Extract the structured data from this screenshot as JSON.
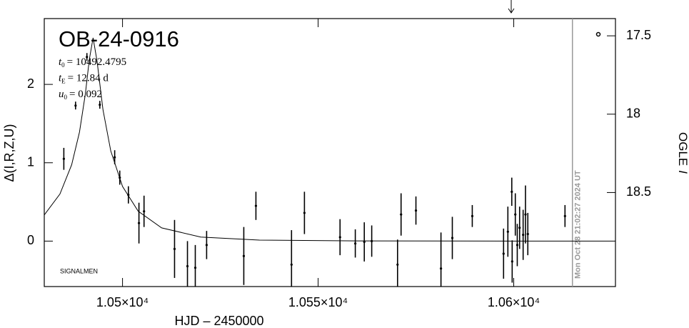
{
  "chart_data": {
    "type": "scatter",
    "title": "OB-24-0916",
    "params": [
      {
        "symbol": "t",
        "subscript": "0",
        "text": "= 10492.4795"
      },
      {
        "symbol": "t",
        "subscript": "E",
        "text": "= 12.84 d"
      },
      {
        "symbol": "u",
        "subscript": "0",
        "text": "= 0.092"
      }
    ],
    "note": "SIGNALMEN",
    "xlabel": "HJD – 2450000",
    "ylabel": "Δ(I,R,Z,U)",
    "y2label": {
      "text": "OGLE",
      "italic": "I"
    },
    "xlim": [
      10480,
      10626
    ],
    "xticks": [
      {
        "value": 10500,
        "label": "1.05×10⁴"
      },
      {
        "value": 10550,
        "label": "1.055×10⁴"
      },
      {
        "value": 10600,
        "label": "1.06×10⁴"
      }
    ],
    "ylim": [
      -0.58,
      2.84
    ],
    "yticks": [
      0,
      1,
      2
    ],
    "y2lim": [
      19.1,
      17.39
    ],
    "y2ticks": [
      17.5,
      18,
      18.5
    ],
    "color": "#000000",
    "x": [
      10485.0,
      10488.0,
      10490.9,
      10494.2,
      10498.0,
      10499.3,
      10501.5,
      10504.2,
      10505.5,
      10513.3,
      10516.6,
      10518.6,
      10521.5,
      10531.0,
      10534.1,
      10543.2,
      10546.5,
      10555.6,
      10559.5,
      10561.8,
      10563.7,
      10570.3,
      10571.2,
      10575.0,
      10581.4,
      10584.3,
      10589.4,
      10597.4,
      10598.5,
      10599.5,
      10599.6,
      10600.4,
      10600.9,
      10601.5,
      10602.4,
      10603.0,
      10603.6,
      10613.1
    ],
    "values": [
      1.05,
      1.73,
      2.35,
      1.74,
      1.07,
      0.81,
      0.59,
      0.23,
      0.38,
      -0.1,
      -0.32,
      -0.34,
      -0.05,
      -0.19,
      0.45,
      -0.3,
      0.36,
      0.05,
      -0.03,
      -0.01,
      0.0,
      -0.3,
      0.34,
      0.39,
      -0.35,
      0.04,
      0.32,
      -0.16,
      0.12,
      0.63,
      -0.26,
      0.34,
      -0.05,
      0.17,
      0.08,
      0.34,
      0.09,
      0.32
    ],
    "errors": [
      0.14,
      0.05,
      0.05,
      0.05,
      0.09,
      0.09,
      0.11,
      0.26,
      0.2,
      0.37,
      0.32,
      0.29,
      0.18,
      0.37,
      0.18,
      0.44,
      0.27,
      0.23,
      0.18,
      0.25,
      0.2,
      0.32,
      0.27,
      0.18,
      0.46,
      0.27,
      0.14,
      0.32,
      0.32,
      0.18,
      0.27,
      0.27,
      0.27,
      0.27,
      0.32,
      0.37,
      0.27,
      0.14
    ],
    "model": {
      "x": [
        10480,
        10484,
        10487,
        10489,
        10490.5,
        10491.5,
        10492.48,
        10493.5,
        10495,
        10497,
        10500,
        10504,
        10510,
        10520,
        10535,
        10560,
        10600,
        10626
      ],
      "values": [
        0.334,
        0.601,
        0.974,
        1.391,
        1.877,
        2.313,
        2.594,
        2.295,
        1.679,
        1.15,
        0.698,
        0.382,
        0.169,
        0.052,
        0.013,
        0.003,
        0.0,
        0.0
      ]
    },
    "current_time": {
      "x": 10615,
      "label": "Mon Oct 28 21:02:27 2024 UT"
    }
  }
}
